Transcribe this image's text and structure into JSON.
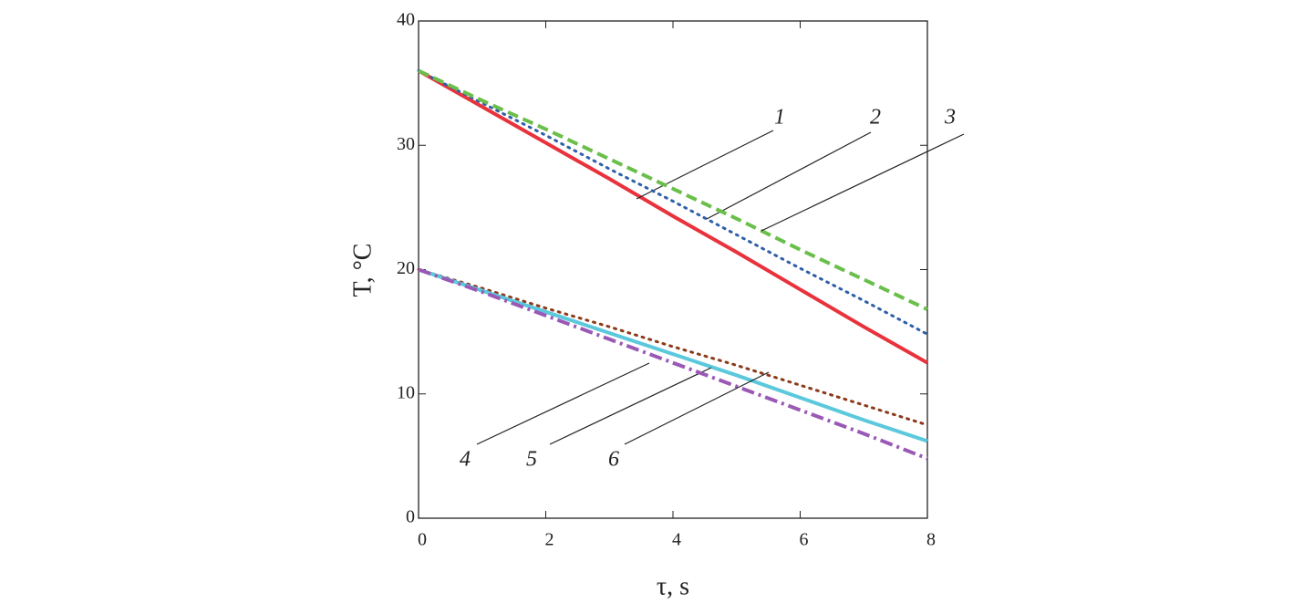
{
  "chart_data": {
    "type": "line",
    "x_label": "τ, s",
    "y_label": "T, °C",
    "x": [
      0,
      1,
      2,
      3,
      4,
      5,
      6,
      7,
      8
    ],
    "xlim": [
      0,
      8
    ],
    "xticks": [
      0,
      2,
      4,
      6,
      8
    ],
    "ylim": [
      0,
      40
    ],
    "yticks": [
      0,
      10,
      20,
      30,
      40
    ],
    "series": [
      {
        "name": "1",
        "color": "#e8323c",
        "style": "solid",
        "values": [
          36,
          33.1,
          30.2,
          27.3,
          24.3,
          21.4,
          18.4,
          15.4,
          12.5
        ]
      },
      {
        "name": "2",
        "color": "#2e5fa8",
        "style": "dotted",
        "values": [
          36,
          33.4,
          30.8,
          28.1,
          25.5,
          22.8,
          20.1,
          17.5,
          14.8
        ]
      },
      {
        "name": "3",
        "color": "#6abf4b",
        "style": "dashed",
        "values": [
          36,
          33.6,
          31.3,
          28.9,
          26.5,
          24.1,
          21.6,
          19.2,
          16.8
        ]
      },
      {
        "name": "4",
        "color": "#8b3a1a",
        "style": "dotted",
        "values": [
          20,
          18.5,
          16.9,
          15.4,
          13.8,
          12.3,
          10.7,
          9.1,
          7.5
        ]
      },
      {
        "name": "5",
        "color": "#5bc8dc",
        "style": "solid",
        "values": [
          20,
          18.3,
          16.6,
          14.9,
          13.2,
          11.5,
          9.7,
          7.9,
          6.2
        ]
      },
      {
        "name": "6",
        "color": "#9b59b6",
        "style": "dashdot",
        "values": [
          20,
          18.2,
          16.3,
          14.4,
          12.5,
          10.6,
          8.7,
          6.8,
          4.8
        ]
      }
    ]
  }
}
